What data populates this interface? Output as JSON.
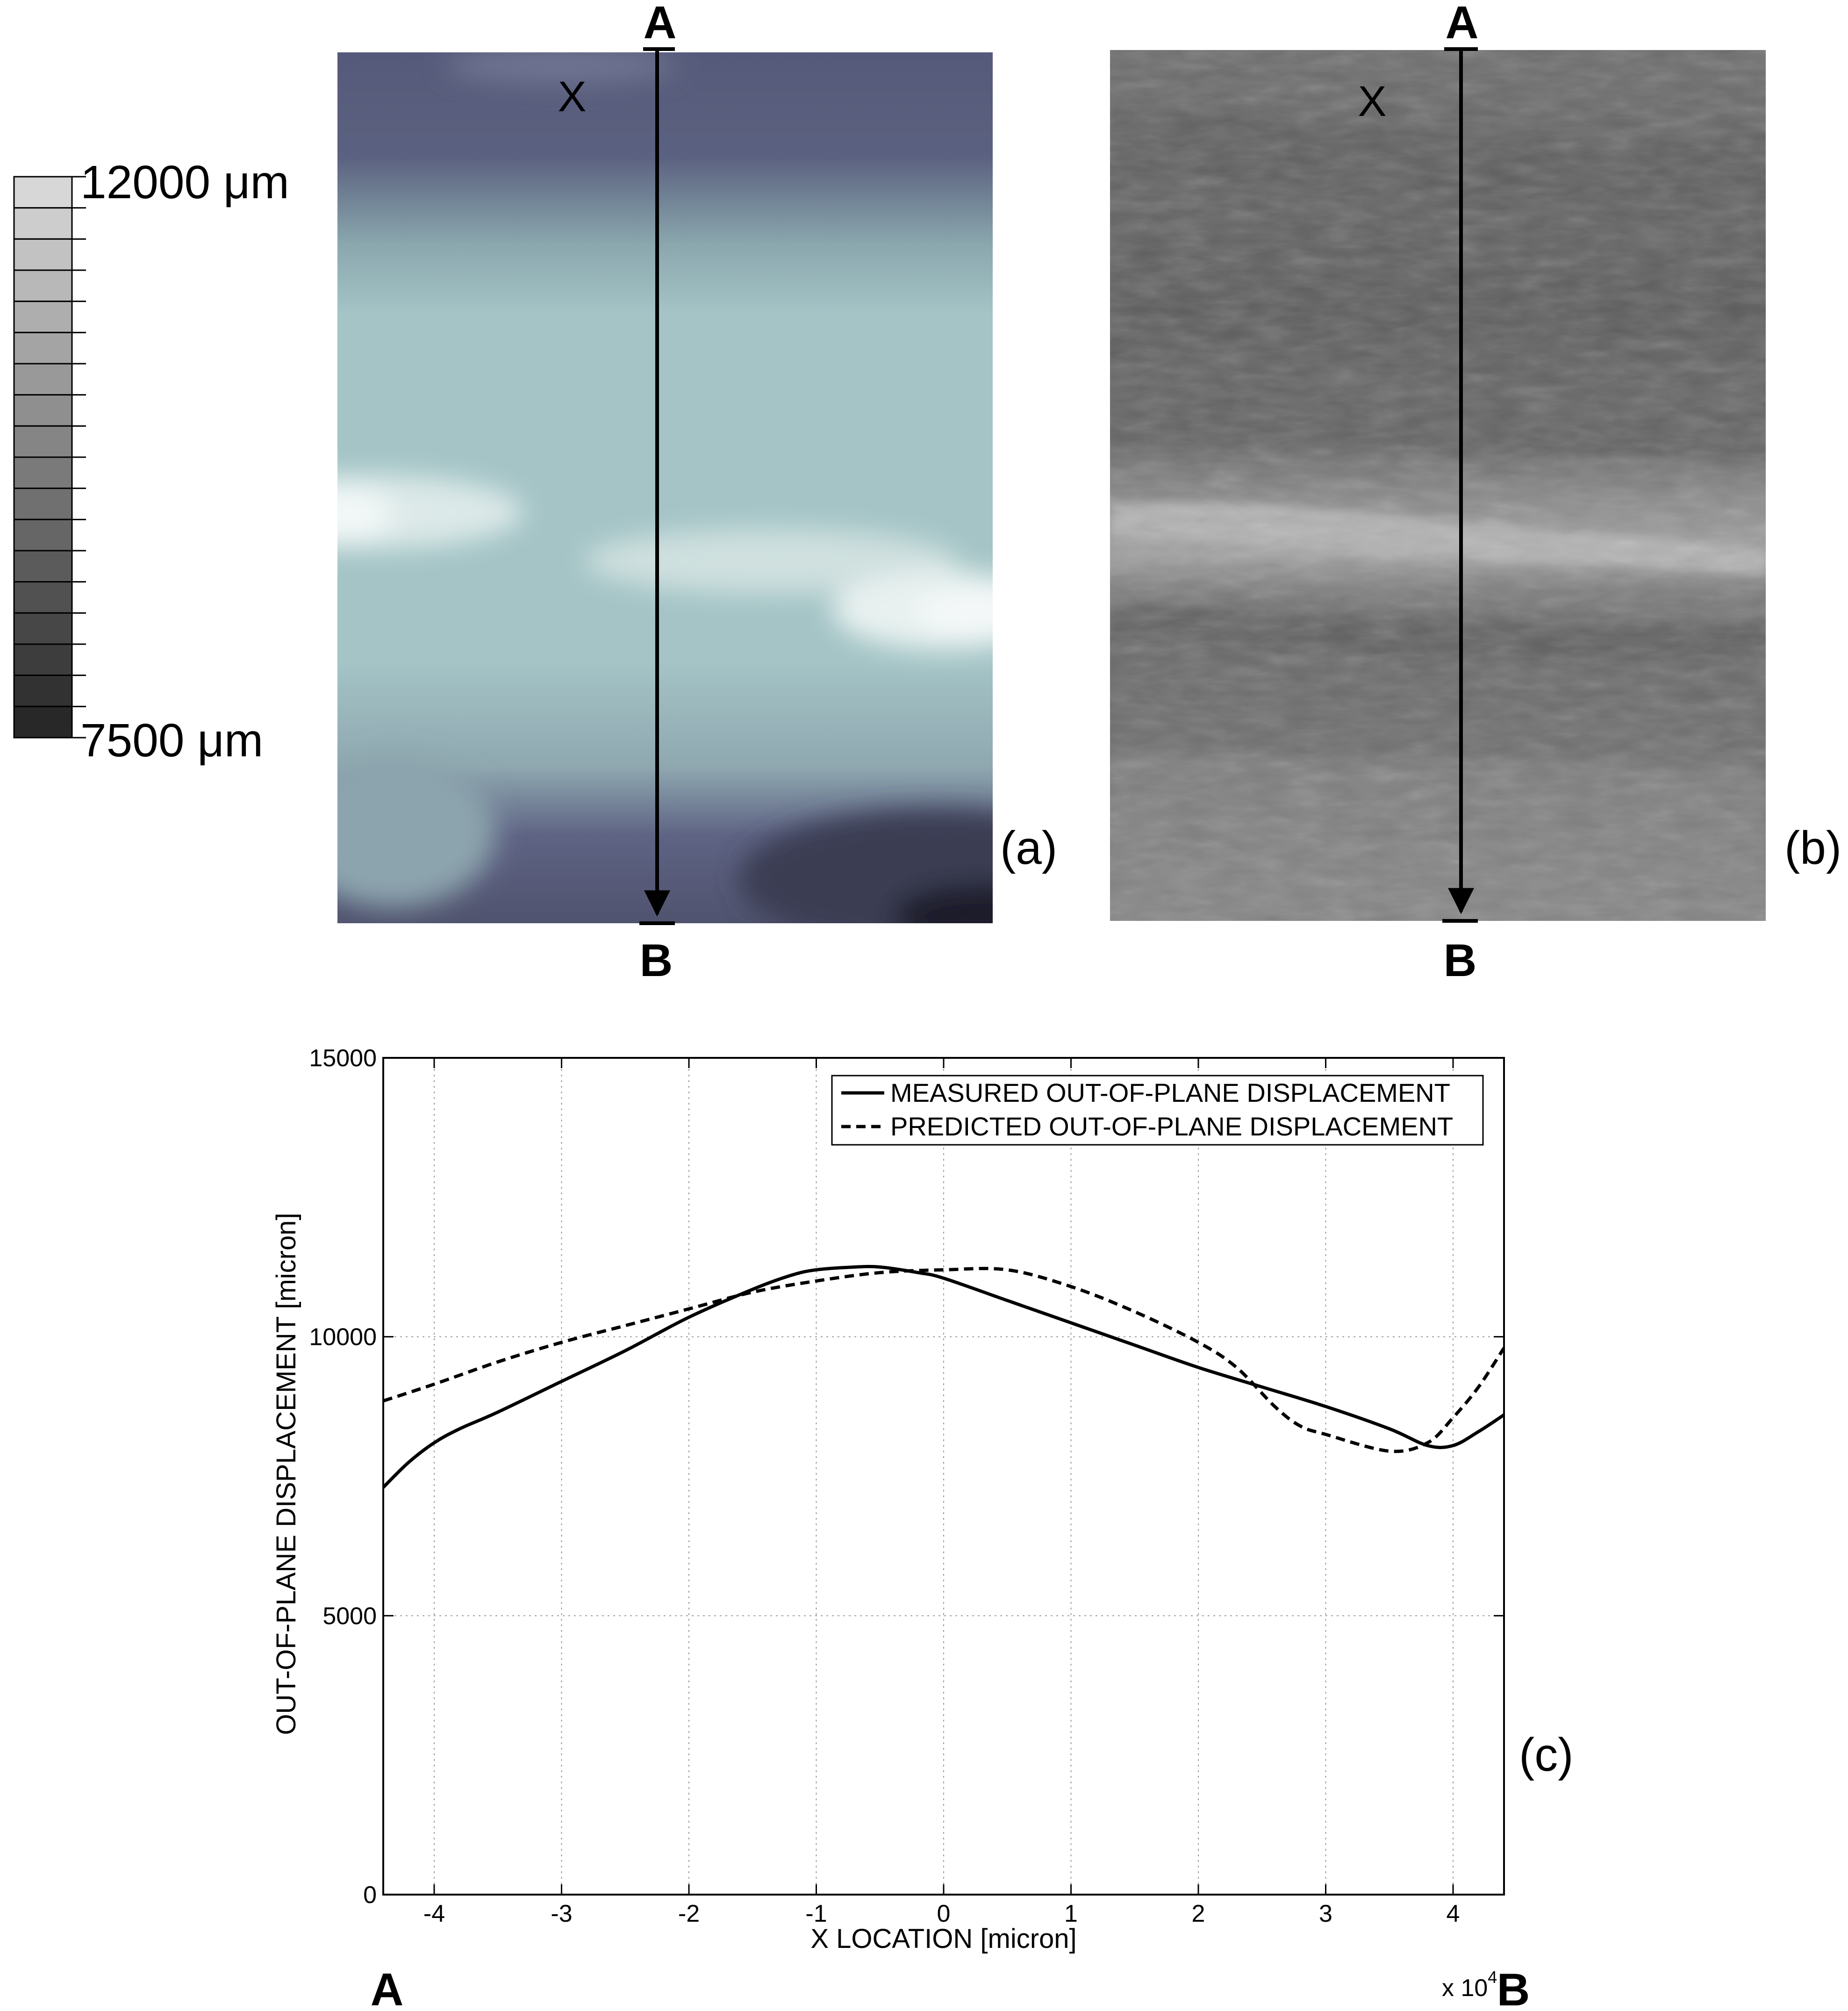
{
  "panel_a": {
    "label": "(a)",
    "point_a": "A",
    "point_b": "B",
    "marker": "X"
  },
  "panel_b": {
    "label": "(b)",
    "point_a": "A",
    "point_b": "B",
    "marker": "X"
  },
  "colorbar": {
    "max_label": "12000 μm",
    "min_label": "7500 μm",
    "levels": 18
  },
  "panel_c": {
    "label": "(c)",
    "point_a": "A",
    "point_b": "B",
    "x_multiplier": "x 10",
    "x_multiplier_exp": "4"
  },
  "chart_data": {
    "type": "line",
    "xlabel": "X LOCATION [micron]",
    "ylabel": "OUT-OF-PLANE DISPLACEMENT [micron]",
    "xlim": [
      -4.4,
      4.4
    ],
    "ylim": [
      0,
      15000
    ],
    "x_scale_note": "x 10^4",
    "xticks": [
      -4,
      -3,
      -2,
      -1,
      0,
      1,
      2,
      3,
      4
    ],
    "xtick_labels": [
      "-4",
      "-3",
      "-2",
      "-1",
      "0",
      "1",
      "2",
      "3",
      "4"
    ],
    "yticks": [
      0,
      5000,
      10000,
      15000
    ],
    "ytick_labels": [
      "0",
      "5000",
      "10000",
      "15000"
    ],
    "grid": true,
    "legend_position": "top-right",
    "series": [
      {
        "name": "MEASURED OUT-OF-PLANE DISPLACEMENT",
        "style": "solid",
        "x": [
          -4.4,
          -4.2,
          -4.0,
          -3.8,
          -3.5,
          -3.0,
          -2.5,
          -2.0,
          -1.5,
          -1.2,
          -1.0,
          -0.7,
          -0.5,
          -0.2,
          0.0,
          0.5,
          1.0,
          1.5,
          2.0,
          2.5,
          3.0,
          3.5,
          3.8,
          4.0,
          4.2,
          4.4
        ],
        "y": [
          7300,
          7750,
          8100,
          8350,
          8650,
          9200,
          9750,
          10350,
          10850,
          11100,
          11200,
          11250,
          11250,
          11150,
          11050,
          10650,
          10250,
          9850,
          9450,
          9100,
          8750,
          8350,
          8050,
          8050,
          8300,
          8600
        ]
      },
      {
        "name": "PREDICTED OUT-OF-PLANE DISPLACEMENT",
        "style": "dashed",
        "x": [
          -4.4,
          -4.0,
          -3.5,
          -3.0,
          -2.5,
          -2.0,
          -1.5,
          -1.0,
          -0.5,
          0.0,
          0.5,
          1.0,
          1.5,
          2.0,
          2.3,
          2.6,
          2.8,
          3.0,
          3.5,
          3.8,
          4.0,
          4.2,
          4.4
        ],
        "y": [
          8850,
          9150,
          9550,
          9900,
          10200,
          10500,
          10800,
          11000,
          11150,
          11200,
          11200,
          10900,
          10450,
          9900,
          9450,
          8750,
          8400,
          8250,
          7950,
          8100,
          8550,
          9100,
          9800
        ]
      }
    ]
  }
}
